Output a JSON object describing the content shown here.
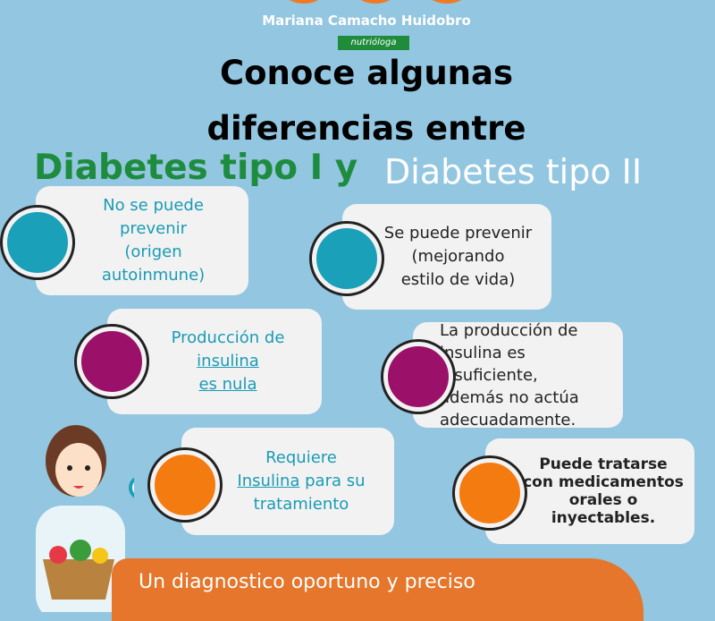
{
  "brand": {
    "name": "Mariana Camacho Huidobro",
    "subtitle": "nutrióloga"
  },
  "title": {
    "line1": "Conoce algunas",
    "line2": "diferencias entre"
  },
  "type1": "Diabetes tipo I y",
  "type2": "Diabetes tipo II",
  "cards": {
    "c1": {
      "l1": "No se puede",
      "l2": "prevenir",
      "l3": "(origen",
      "l4": "autoinmune)"
    },
    "c2": {
      "l1": "Se puede prevenir",
      "l2": "(mejorando",
      "l3": "estilo de vida)"
    },
    "c3": {
      "l1": "Producción de",
      "l2": "insulina ",
      "l3": "es nula "
    },
    "c4": {
      "l1": "La producción de",
      "l2": "insulina es insuficiente,",
      "l3": "además no actúa",
      "l4": "adecuadamente."
    },
    "c5": {
      "l1": "Requiere",
      "l2a": "Insulina",
      "l2b": " para su",
      "l3": "tratamiento"
    },
    "c6": {
      "l1": "Puede tratarse",
      "l2": "con medicamentos",
      "l3": "orales o",
      "l4": "inyectables."
    }
  },
  "banner": "Un diagnostico  oportuno y preciso",
  "colors": {
    "teal": "#1aa0b8",
    "purple": "#9b1068",
    "orange": "#f47b10",
    "green": "#1e8c3f",
    "banner": "#e5762b"
  }
}
